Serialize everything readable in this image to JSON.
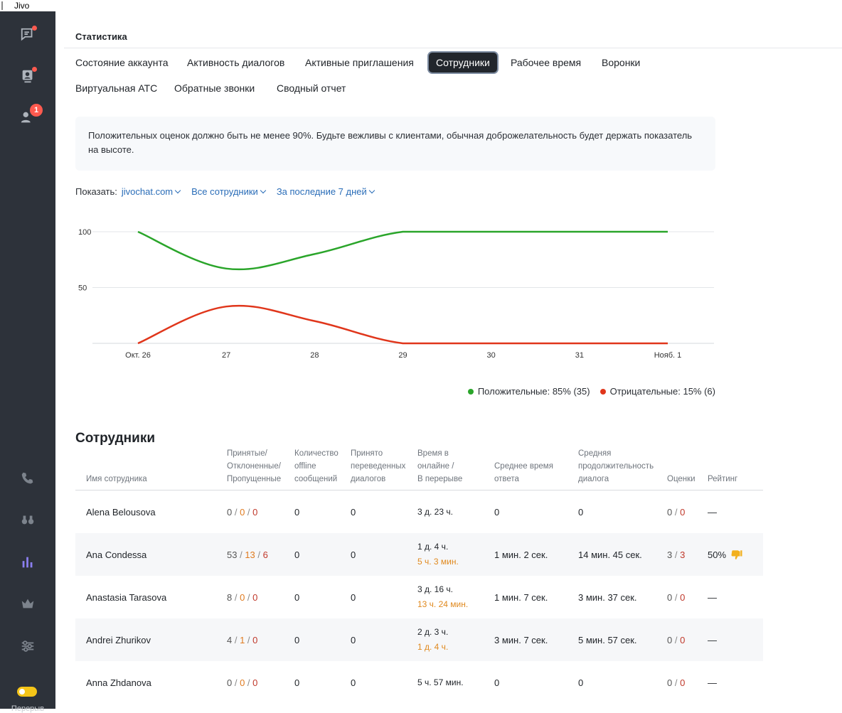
{
  "window": {
    "title": "Jivo"
  },
  "sidebar": {
    "break_label": "Перерыв",
    "notification_badge": "1"
  },
  "page": {
    "title": "Статистика",
    "tabs": [
      {
        "label": "Состояние аккаунта",
        "active": false
      },
      {
        "label": "Активность диалогов",
        "active": false
      },
      {
        "label": "Активные приглашения",
        "active": false
      },
      {
        "label": "Сотрудники",
        "active": true
      },
      {
        "label": "Рабочее время",
        "active": false
      },
      {
        "label": "Воронки",
        "active": false
      },
      {
        "label": "Виртуальная АТС",
        "active": false
      },
      {
        "label": "Обратные звонки",
        "active": false
      },
      {
        "label": "Сводный отчет",
        "active": false
      }
    ],
    "info": "Положительных оценок должно быть не менее 90%. Будьте вежливы с клиентами, обычная доброжелательность будет держать показатель на высоте."
  },
  "filters": {
    "label": "Показать:",
    "site": "jivochat.com",
    "employees": "Все сотрудники",
    "period": "За последние 7 дней"
  },
  "chart_data": {
    "type": "line",
    "x": [
      "Окт. 26",
      "27",
      "28",
      "29",
      "30",
      "31",
      "Нояб. 1"
    ],
    "ylim": [
      0,
      100
    ],
    "yticks": [
      50,
      100
    ],
    "grid": true,
    "series": [
      {
        "name": "Положительные: 85% (35)",
        "color": "#2aa52a",
        "values": [
          100,
          67,
          80,
          100,
          100,
          100,
          100
        ]
      },
      {
        "name": "Отрицательные: 15% (6)",
        "color": "#e0361b",
        "values": [
          0,
          33,
          20,
          0,
          0,
          0,
          0
        ]
      }
    ],
    "legend_position": "bottom-right"
  },
  "staff": {
    "title": "Сотрудники",
    "columns": [
      "Имя сотрудника",
      "Принятые/\nОтклоненные/\nПропущенные",
      "Количество\noffline\nсообщений",
      "Принято\nпереведенных\nдиалогов",
      "Время в\nонлайне /\nВ перерыве",
      "Среднее время\nответа",
      "Средняя\nпродолжительность\nдиалога",
      "Оценки",
      "Рейтинг"
    ],
    "rows": [
      {
        "name": "Alena Belousova",
        "accepted": "0",
        "rejected": "0",
        "missed": "0",
        "offline": "0",
        "transferred": "0",
        "online": "3 д. 23 ч.",
        "break": "",
        "avg_response": "0",
        "avg_duration": "0",
        "ratings_pos": "0",
        "ratings_neg": "0",
        "rating": "—",
        "thumb": false
      },
      {
        "name": "Ana Condessa",
        "accepted": "53",
        "rejected": "13",
        "missed": "6",
        "offline": "0",
        "transferred": "0",
        "online": "1 д. 4 ч.",
        "break": "5 ч. 3 мин.",
        "avg_response": "1 мин. 2 сек.",
        "avg_duration": "14 мин. 45 сек.",
        "ratings_pos": "3",
        "ratings_neg": "3",
        "rating": "50%",
        "thumb": true
      },
      {
        "name": "Anastasia Tarasova",
        "accepted": "8",
        "rejected": "0",
        "missed": "0",
        "offline": "0",
        "transferred": "0",
        "online": "3 д. 16 ч.",
        "break": "13 ч. 24 мин.",
        "avg_response": "1 мин. 7 сек.",
        "avg_duration": "3 мин. 37 сек.",
        "ratings_pos": "0",
        "ratings_neg": "0",
        "rating": "—",
        "thumb": false
      },
      {
        "name": "Andrei Zhurikov",
        "accepted": "4",
        "rejected": "1",
        "missed": "0",
        "offline": "0",
        "transferred": "0",
        "online": "2 д. 3 ч.",
        "break": "1 д. 4 ч.",
        "avg_response": "3 мин. 7 сек.",
        "avg_duration": "5 мин. 57 сек.",
        "ratings_pos": "0",
        "ratings_neg": "0",
        "rating": "—",
        "thumb": false
      },
      {
        "name": "Anna Zhdanova",
        "accepted": "0",
        "rejected": "0",
        "missed": "0",
        "offline": "0",
        "transferred": "0",
        "online": "5 ч. 57 мин.",
        "break": "",
        "avg_response": "0",
        "avg_duration": "0",
        "ratings_pos": "0",
        "ratings_neg": "0",
        "rating": "—",
        "thumb": false
      }
    ]
  }
}
